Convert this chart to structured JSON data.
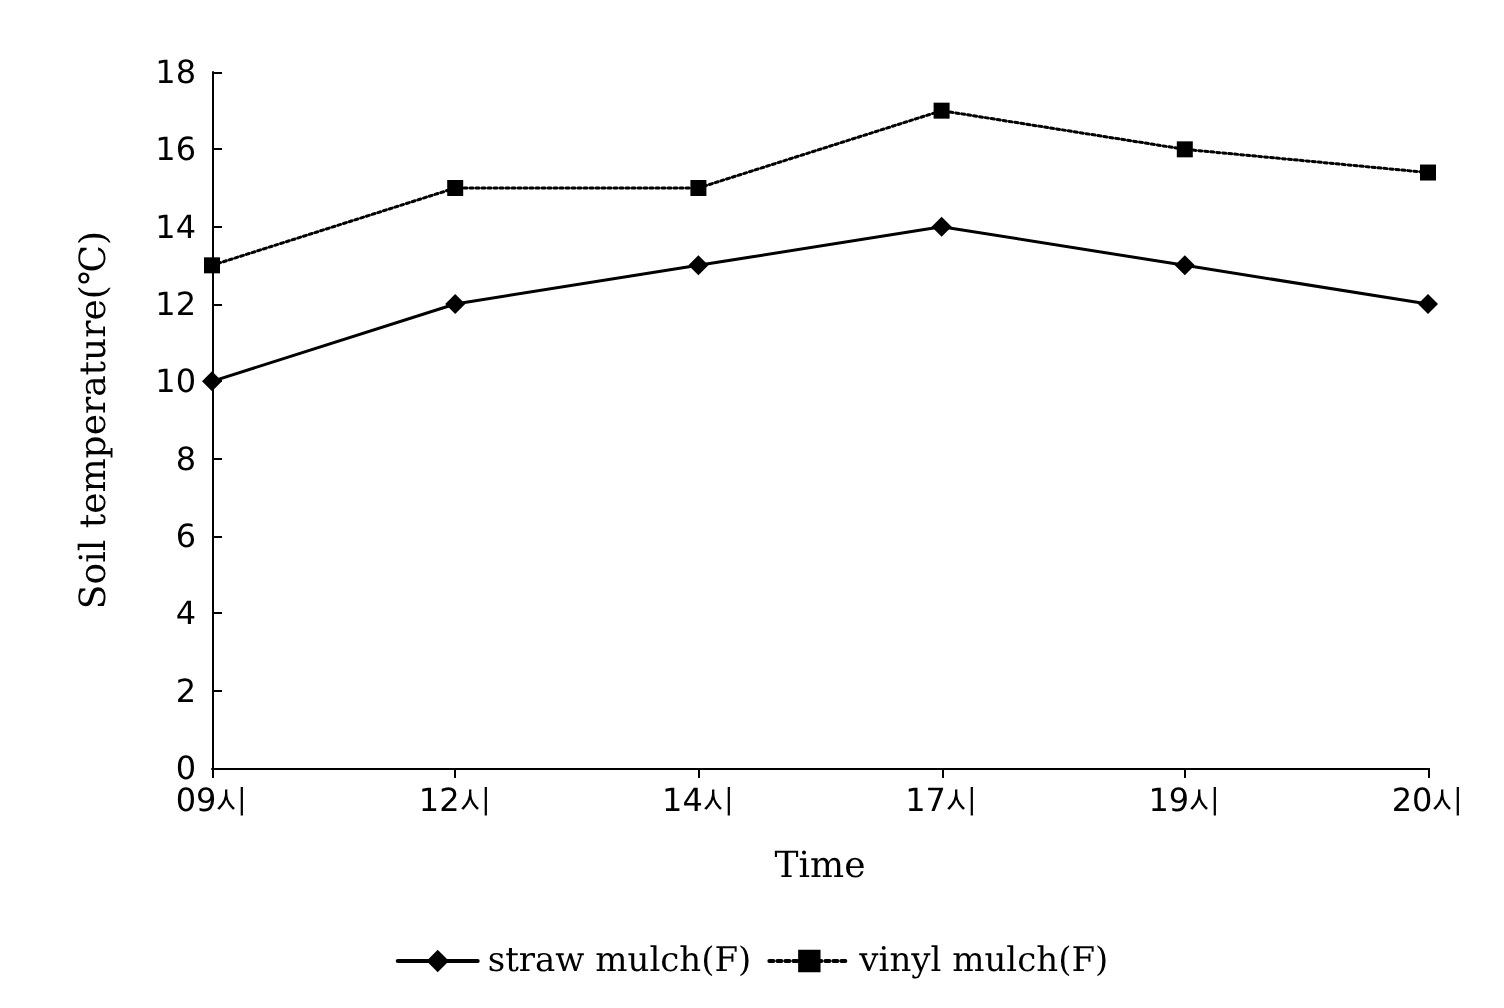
{
  "chart_data": {
    "type": "line",
    "xlabel": "Time",
    "ylabel": "Soil temperature(℃)",
    "categories": [
      "09시",
      "12시",
      "14시",
      "17시",
      "19시",
      "20시"
    ],
    "series": [
      {
        "name": "straw mulch(F)",
        "color": "#000000",
        "marker": "diamond",
        "line_style": "solid",
        "values": [
          10,
          12,
          13,
          14,
          13,
          12
        ]
      },
      {
        "name": "vinyl mulch(F)",
        "color": "#000000",
        "marker": "square",
        "line_style": "dotted",
        "values": [
          13,
          15,
          15,
          17,
          16,
          15.4
        ]
      }
    ],
    "ylim": [
      0,
      18
    ],
    "yticks": [
      0,
      2,
      4,
      6,
      8,
      10,
      12,
      14,
      16,
      18
    ],
    "grid": false,
    "legend": "bottom"
  }
}
